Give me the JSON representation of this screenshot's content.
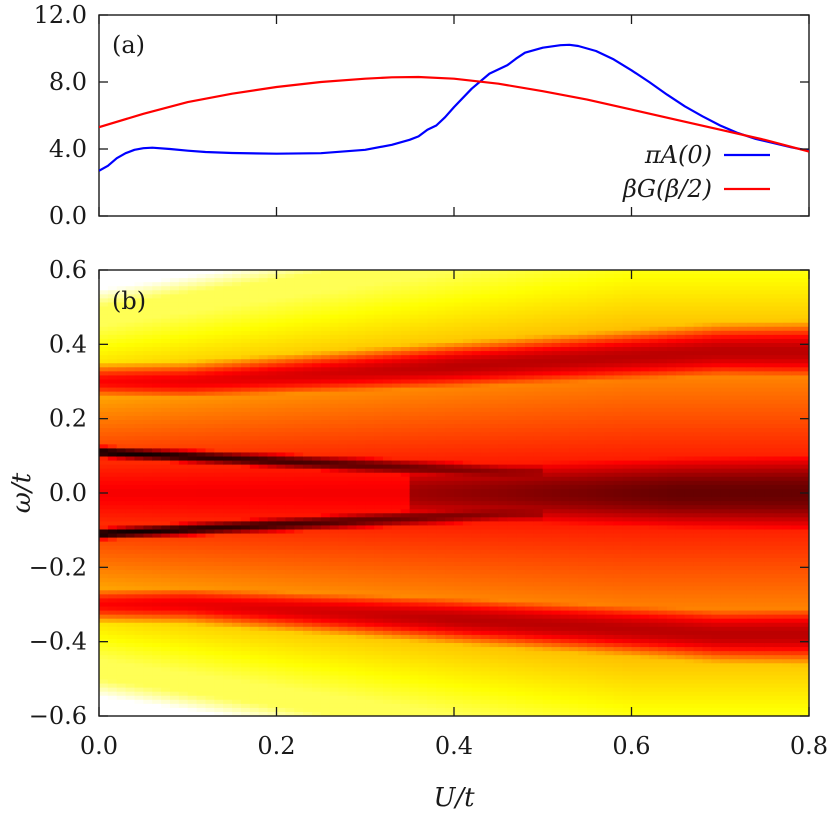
{
  "chart_data": [
    {
      "type": "line",
      "panel_label": "(a)",
      "xlim": [
        0.0,
        0.8
      ],
      "ylim": [
        0.0,
        12.0
      ],
      "x_ticks": [
        0.0,
        0.2,
        0.4,
        0.6,
        0.8
      ],
      "y_ticks": [
        0.0,
        4.0,
        8.0,
        12.0
      ],
      "y_tick_labels": [
        "0.0",
        "4.0",
        "8.0",
        "12.0"
      ],
      "x_tick_labels_visible": false,
      "grid": false,
      "legend_position": "right",
      "series": [
        {
          "name": "πA(0)",
          "color": "#0000ff",
          "x": [
            0.0,
            0.01,
            0.02,
            0.03,
            0.04,
            0.05,
            0.06,
            0.08,
            0.1,
            0.12,
            0.15,
            0.2,
            0.25,
            0.3,
            0.33,
            0.35,
            0.36,
            0.37,
            0.38,
            0.39,
            0.4,
            0.42,
            0.44,
            0.46,
            0.47,
            0.48,
            0.5,
            0.52,
            0.53,
            0.54,
            0.56,
            0.58,
            0.6,
            0.62,
            0.64,
            0.66,
            0.68,
            0.7,
            0.72,
            0.74,
            0.76,
            0.78,
            0.8
          ],
          "y": [
            2.7,
            3.0,
            3.45,
            3.75,
            3.95,
            4.05,
            4.08,
            4.0,
            3.9,
            3.82,
            3.76,
            3.72,
            3.75,
            3.95,
            4.25,
            4.55,
            4.75,
            5.15,
            5.4,
            5.9,
            6.5,
            7.6,
            8.5,
            9.0,
            9.4,
            9.75,
            10.05,
            10.2,
            10.22,
            10.15,
            9.85,
            9.35,
            8.7,
            8.0,
            7.25,
            6.55,
            5.95,
            5.4,
            4.95,
            4.6,
            4.35,
            4.1,
            3.9
          ]
        },
        {
          "name": "βG(β/2)",
          "color": "#ff0000",
          "x": [
            0.0,
            0.05,
            0.1,
            0.15,
            0.2,
            0.25,
            0.3,
            0.33,
            0.36,
            0.4,
            0.45,
            0.5,
            0.55,
            0.6,
            0.65,
            0.7,
            0.75,
            0.8
          ],
          "y": [
            5.3,
            6.1,
            6.8,
            7.3,
            7.7,
            8.0,
            8.2,
            8.28,
            8.3,
            8.2,
            7.9,
            7.45,
            6.95,
            6.35,
            5.75,
            5.15,
            4.55,
            3.85
          ]
        }
      ]
    },
    {
      "type": "heatmap",
      "panel_label": "(b)",
      "xlabel": "U/t",
      "ylabel": "ω/t",
      "xlim": [
        0.0,
        0.8
      ],
      "ylim": [
        -0.6,
        0.6
      ],
      "x_ticks": [
        0.0,
        0.2,
        0.4,
        0.6,
        0.8
      ],
      "x_tick_labels": [
        "0.0",
        "0.2",
        "0.4",
        "0.6",
        "0.8"
      ],
      "y_ticks": [
        -0.6,
        -0.4,
        -0.2,
        0.0,
        0.2,
        0.4,
        0.6
      ],
      "y_tick_labels": [
        "−0.6",
        "−0.4",
        "−0.2",
        "0.0",
        "0.2",
        "0.4",
        "0.6"
      ],
      "colormap": "hot",
      "colors": {
        "low": "#ffffff",
        "mid_low": "#ffff00",
        "mid": "#ff8000",
        "high": "#ff0000",
        "max": "#000000"
      }
    }
  ]
}
